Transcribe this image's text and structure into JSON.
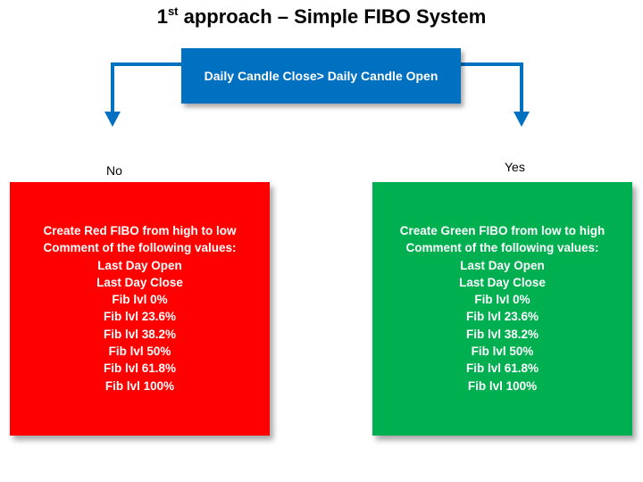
{
  "title": {
    "main": "1",
    "superscript": "st",
    "rest": " approach – Simple FIBO System"
  },
  "decision": {
    "text": "Daily  Candle Close> Daily Candle Open"
  },
  "branches": {
    "no": {
      "label": "No",
      "color": "#ff0000",
      "lines": [
        "Create Red FIBO from high to low",
        "Comment of the following  values:",
        "Last Day Open",
        "Last Day Close",
        "Fib lvl 0%",
        "Fib lvl 23.6%",
        "Fib lvl 38.2%",
        "Fib lvl 50%",
        "Fib lvl 61.8%",
        "Fib lvl 100%"
      ]
    },
    "yes": {
      "label": "Yes",
      "color": "#00b050",
      "lines": [
        "Create Green FIBO from low to high",
        "Comment of the following  values:",
        "Last Day Open",
        "Last Day Close",
        "Fib lvl 0%",
        "Fib lvl 23.6%",
        "Fib lvl 38.2%",
        "Fib lvl 50%",
        "Fib lvl 61.8%",
        "Fib lvl 100%"
      ]
    }
  },
  "colors": {
    "decision": "#0070c0",
    "arrow": "#0070c0"
  }
}
